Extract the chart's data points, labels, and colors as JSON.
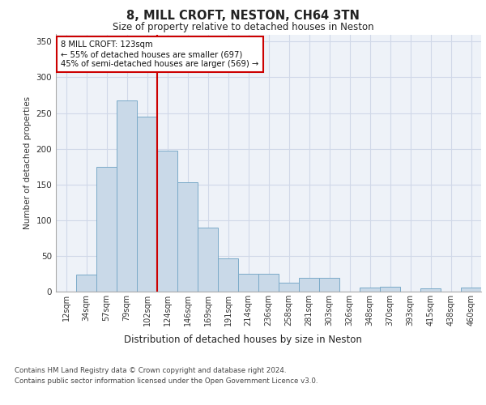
{
  "title1": "8, MILL CROFT, NESTON, CH64 3TN",
  "title2": "Size of property relative to detached houses in Neston",
  "xlabel": "Distribution of detached houses by size in Neston",
  "ylabel": "Number of detached properties",
  "bin_labels": [
    "12sqm",
    "34sqm",
    "57sqm",
    "79sqm",
    "102sqm",
    "124sqm",
    "146sqm",
    "169sqm",
    "191sqm",
    "214sqm",
    "236sqm",
    "258sqm",
    "281sqm",
    "303sqm",
    "326sqm",
    "348sqm",
    "370sqm",
    "393sqm",
    "415sqm",
    "438sqm",
    "460sqm"
  ],
  "bar_values": [
    0,
    24,
    175,
    268,
    245,
    197,
    153,
    90,
    46,
    25,
    25,
    13,
    19,
    19,
    0,
    6,
    7,
    0,
    5,
    0,
    6
  ],
  "bar_color": "#c9d9e8",
  "bar_edge_color": "#7aaac8",
  "grid_color": "#d0d8e8",
  "background_color": "#eef2f8",
  "annotation_box_text": "8 MILL CROFT: 123sqm\n← 55% of detached houses are smaller (697)\n45% of semi-detached houses are larger (569) →",
  "red_line_bin": 4.5,
  "red_color": "#cc0000",
  "ylim": [
    0,
    360
  ],
  "yticks": [
    0,
    50,
    100,
    150,
    200,
    250,
    300,
    350
  ],
  "footer1": "Contains HM Land Registry data © Crown copyright and database right 2024.",
  "footer2": "Contains public sector information licensed under the Open Government Licence v3.0."
}
